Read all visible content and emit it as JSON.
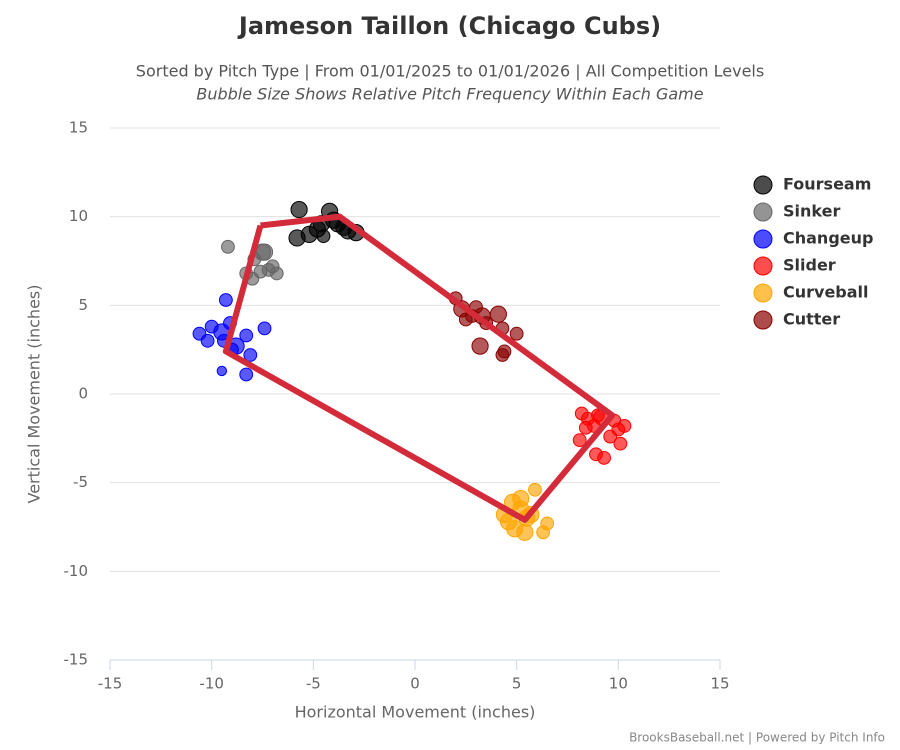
{
  "chart_data": {
    "type": "bubble",
    "title": "Jameson Taillon (Chicago Cubs)",
    "subtitle": "Sorted by Pitch Type | From 01/01/2025 to 01/01/2026 | All Competition Levels",
    "subtitle2": "Bubble Size Shows Relative Pitch Frequency Within Each Game",
    "x_label": "Horizontal Movement (inches)",
    "y_label": "Vertical Movement (inches)",
    "credit": "BrooksBaseball.net | Powered by Pitch Info",
    "xlim": [
      -15,
      15
    ],
    "xticks": [
      -15,
      -10,
      -5,
      0,
      5,
      10,
      15
    ],
    "ylim": [
      -15,
      15
    ],
    "yticks": [
      -15,
      -10,
      -5,
      0,
      5,
      10,
      15
    ],
    "grid": true,
    "legend": "right",
    "series": [
      {
        "name": "Fourseam",
        "color": "#000000",
        "x": [
          -5.7,
          -5.8,
          -4.8,
          -4.2,
          -4.5,
          -3.8,
          -3.3,
          -2.9,
          -5.2,
          -4.0,
          -4.6,
          -3.5
        ],
        "values": [
          10.4,
          8.8,
          9.3,
          10.3,
          8.9,
          9.6,
          9.2,
          9.1,
          9.0,
          9.8,
          9.6,
          9.4
        ],
        "sizes": [
          3,
          3,
          3,
          3,
          2,
          3,
          3,
          3,
          3,
          3,
          3,
          3
        ]
      },
      {
        "name": "Sinker",
        "color": "#666666",
        "x": [
          -9.2,
          -8.3,
          -7.9,
          -7.4,
          -7.0,
          -7.6,
          -6.8,
          -8.0,
          -7.2,
          -7.5
        ],
        "values": [
          8.3,
          6.8,
          7.6,
          8.0,
          7.2,
          6.9,
          6.8,
          6.5,
          7.0,
          8.0
        ],
        "sizes": [
          2,
          2,
          2,
          3,
          2,
          2,
          2,
          2,
          2,
          3
        ]
      },
      {
        "name": "Changeup",
        "color": "#0000ff",
        "x": [
          -10.6,
          -10.0,
          -9.5,
          -9.3,
          -9.1,
          -8.8,
          -9.0,
          -8.3,
          -8.1,
          -7.4,
          -9.5,
          -8.3,
          -10.2,
          -9.4
        ],
        "values": [
          3.4,
          3.8,
          3.5,
          5.3,
          4.0,
          2.7,
          2.5,
          3.3,
          2.2,
          3.7,
          1.3,
          1.1,
          3.0,
          3.0
        ],
        "sizes": [
          2,
          2,
          3,
          2,
          2,
          3,
          2,
          2,
          2,
          2,
          1,
          2,
          2,
          2
        ]
      },
      {
        "name": "Slider",
        "color": "#ff0000",
        "x": [
          8.2,
          8.5,
          8.8,
          9.2,
          9.6,
          10.0,
          10.3,
          10.1,
          8.1,
          8.9,
          9.3,
          9.0,
          8.4,
          9.8
        ],
        "values": [
          -1.1,
          -1.4,
          -1.8,
          -1.3,
          -2.4,
          -2.0,
          -1.8,
          -2.8,
          -2.6,
          -3.4,
          -3.6,
          -1.2,
          -1.9,
          -1.5
        ],
        "sizes": [
          2,
          2,
          2,
          3,
          2,
          2,
          2,
          2,
          2,
          2,
          2,
          2,
          2,
          2
        ]
      },
      {
        "name": "Curveball",
        "color": "#ffa500",
        "x": [
          4.8,
          5.2,
          5.9,
          4.4,
          4.9,
          5.4,
          6.3,
          6.5,
          5.7,
          5.2,
          4.6,
          5.5
        ],
        "values": [
          -6.1,
          -5.9,
          -5.4,
          -6.8,
          -7.6,
          -7.8,
          -7.8,
          -7.3,
          -6.8,
          -6.5,
          -7.2,
          -7.0
        ],
        "sizes": [
          3,
          3,
          2,
          3,
          3,
          3,
          2,
          2,
          3,
          3,
          3,
          3
        ]
      },
      {
        "name": "Cutter",
        "color": "#8b0000",
        "x": [
          2.0,
          2.3,
          2.5,
          3.0,
          3.3,
          3.5,
          4.1,
          4.3,
          4.4,
          4.3,
          3.2,
          5.0,
          2.8
        ],
        "values": [
          5.4,
          4.8,
          4.2,
          4.9,
          4.4,
          4.0,
          4.5,
          3.7,
          2.4,
          2.2,
          2.7,
          3.4,
          4.4
        ],
        "sizes": [
          2,
          3,
          2,
          2,
          3,
          2,
          3,
          2,
          2,
          2,
          3,
          2,
          2
        ]
      }
    ],
    "outline": {
      "color": "#d42b3a",
      "x": [
        -7.6,
        -3.7,
        9.7,
        5.4,
        -9.3,
        -7.6
      ],
      "y": [
        9.5,
        10.0,
        -1.2,
        -7.1,
        2.4,
        9.5
      ]
    }
  }
}
